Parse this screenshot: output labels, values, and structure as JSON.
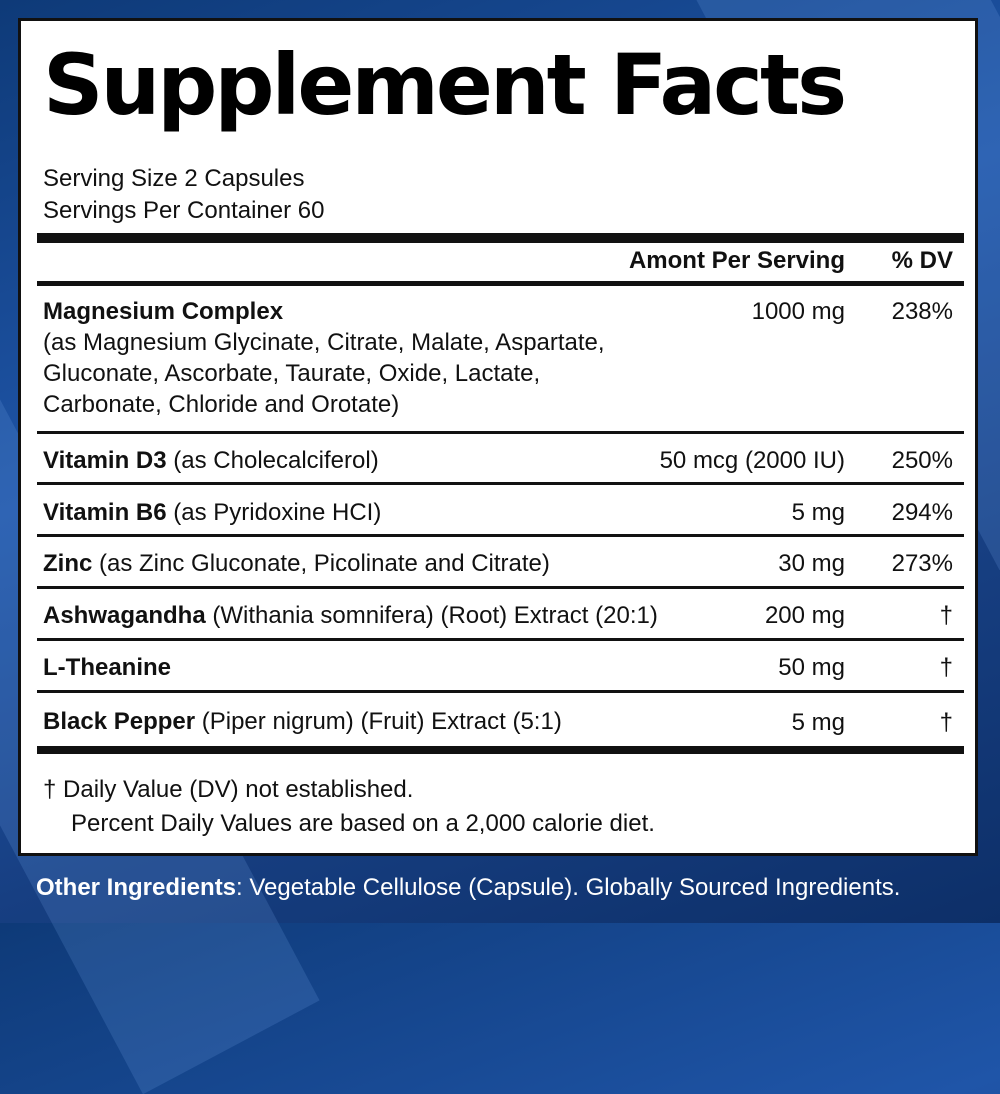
{
  "title": "Supplement Facts",
  "serving_size": "Serving Size 2 Capsules",
  "servings_per_container": "Servings Per Container 60",
  "header": {
    "amount": "Amont Per Serving",
    "dv": "% DV"
  },
  "rows": [
    {
      "name": "Magnesium Complex",
      "detail_lines": [
        "(as Magnesium Glycinate, Citrate, Malate, Aspartate,",
        "Gluconate, Ascorbate, Taurate, Oxide, Lactate,",
        "Carbonate, Chloride and Orotate)"
      ],
      "amount": "1000 mg",
      "dv": "238%"
    },
    {
      "name": "Vitamin D3",
      "detail": "(as Cholecalciferol)",
      "amount": "50 mcg (2000 IU)",
      "dv": "250%"
    },
    {
      "name": "Vitamin B6",
      "detail": "(as Pyridoxine HCI)",
      "amount": "5 mg",
      "dv": "294%"
    },
    {
      "name": "Zinc",
      "detail": "(as Zinc Gluconate, Picolinate and Citrate)",
      "amount": "30 mg",
      "dv": "273%"
    },
    {
      "name": "Ashwagandha",
      "detail": "(Withania somnifera) (Root) Extract (20:1)",
      "amount": "200 mg",
      "dv": "†"
    },
    {
      "name": "L-Theanine",
      "detail": "",
      "amount": "50 mg",
      "dv": "†"
    },
    {
      "name": "Black Pepper",
      "detail": "(Piper nigrum) (Fruit) Extract (5:1)",
      "amount": "5 mg",
      "dv": "†"
    }
  ],
  "footnote_1": "†  Daily Value (DV) not established.",
  "footnote_2": "Percent Daily Values are based on a 2,000 calorie diet.",
  "other_ingredients": {
    "label": "Other Ingredients",
    "text": ": Vegetable Cellulose (Capsule).  Globally Sourced Ingredients."
  }
}
